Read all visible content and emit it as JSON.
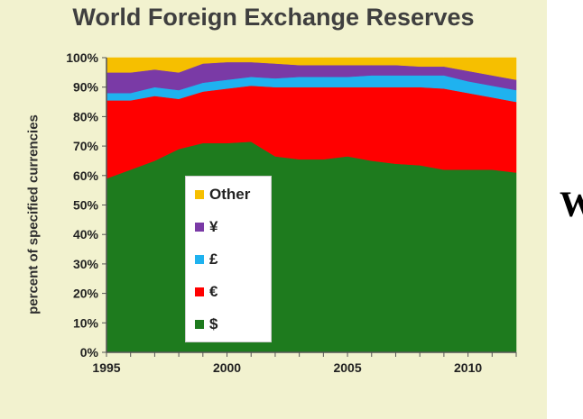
{
  "chart_data": {
    "type": "area",
    "stacked": true,
    "title": "World Foreign Exchange Reserves",
    "xlabel": "",
    "ylabel": "percent of specified currencies",
    "xlim": [
      1995,
      2012
    ],
    "ylim": [
      0,
      100
    ],
    "x_ticks": [
      1995,
      2000,
      2005,
      2010
    ],
    "x_tick_labels": [
      "1995",
      "2000",
      "2005",
      "2010"
    ],
    "y_ticks": [
      0,
      10,
      20,
      30,
      40,
      50,
      60,
      70,
      80,
      90,
      100
    ],
    "y_tick_labels": [
      "0%",
      "10%",
      "20%",
      "30%",
      "40%",
      "50%",
      "60%",
      "70%",
      "80%",
      "90%",
      "100%"
    ],
    "grid": false,
    "legend_position": "lower-left-center",
    "x": [
      1995,
      1996,
      1997,
      1998,
      1999,
      2000,
      2001,
      2002,
      2003,
      2004,
      2005,
      2006,
      2007,
      2008,
      2009,
      2010,
      2011,
      2012
    ],
    "series": [
      {
        "name": "$",
        "color": "#1e7b1e",
        "values": [
          59,
          62,
          65,
          69,
          71,
          71,
          71.5,
          66.5,
          65.5,
          65.5,
          66.5,
          65,
          64,
          63.5,
          62,
          62,
          62,
          61
        ]
      },
      {
        "name": "€",
        "color": "#ff0000",
        "values": [
          26.5,
          23.5,
          22,
          17,
          17.5,
          18.5,
          19,
          23.5,
          24.5,
          24.5,
          23.5,
          25,
          26,
          26.5,
          27.5,
          26,
          24.5,
          24
        ]
      },
      {
        "name": "£",
        "color": "#1fb2ef",
        "values": [
          2.5,
          2.5,
          3,
          3,
          3,
          3,
          3,
          3,
          3.5,
          3.5,
          3.5,
          4,
          4,
          4,
          4.5,
          4,
          4,
          4
        ]
      },
      {
        "name": "¥",
        "color": "#7a3aa6",
        "values": [
          7,
          7,
          6,
          6,
          6.5,
          6,
          5,
          5,
          4,
          4,
          4,
          3.5,
          3.5,
          3,
          3,
          3.5,
          3.5,
          3.5
        ]
      },
      {
        "name": "Other",
        "color": "#f6bf00",
        "values": [
          5,
          5,
          4,
          5,
          2,
          1.5,
          1.5,
          2,
          2.5,
          2.5,
          2.5,
          2.5,
          2.5,
          3,
          3,
          4.5,
          6,
          7.5
        ]
      }
    ],
    "legend": [
      {
        "label": "Other",
        "color": "#f6bf00"
      },
      {
        "label": "¥",
        "color": "#7a3aa6"
      },
      {
        "label": "£",
        "color": "#1fb2ef"
      },
      {
        "label": "€",
        "color": "#ff0000"
      },
      {
        "label": "$",
        "color": "#1e7b1e"
      }
    ]
  },
  "cutoff_text": "W"
}
